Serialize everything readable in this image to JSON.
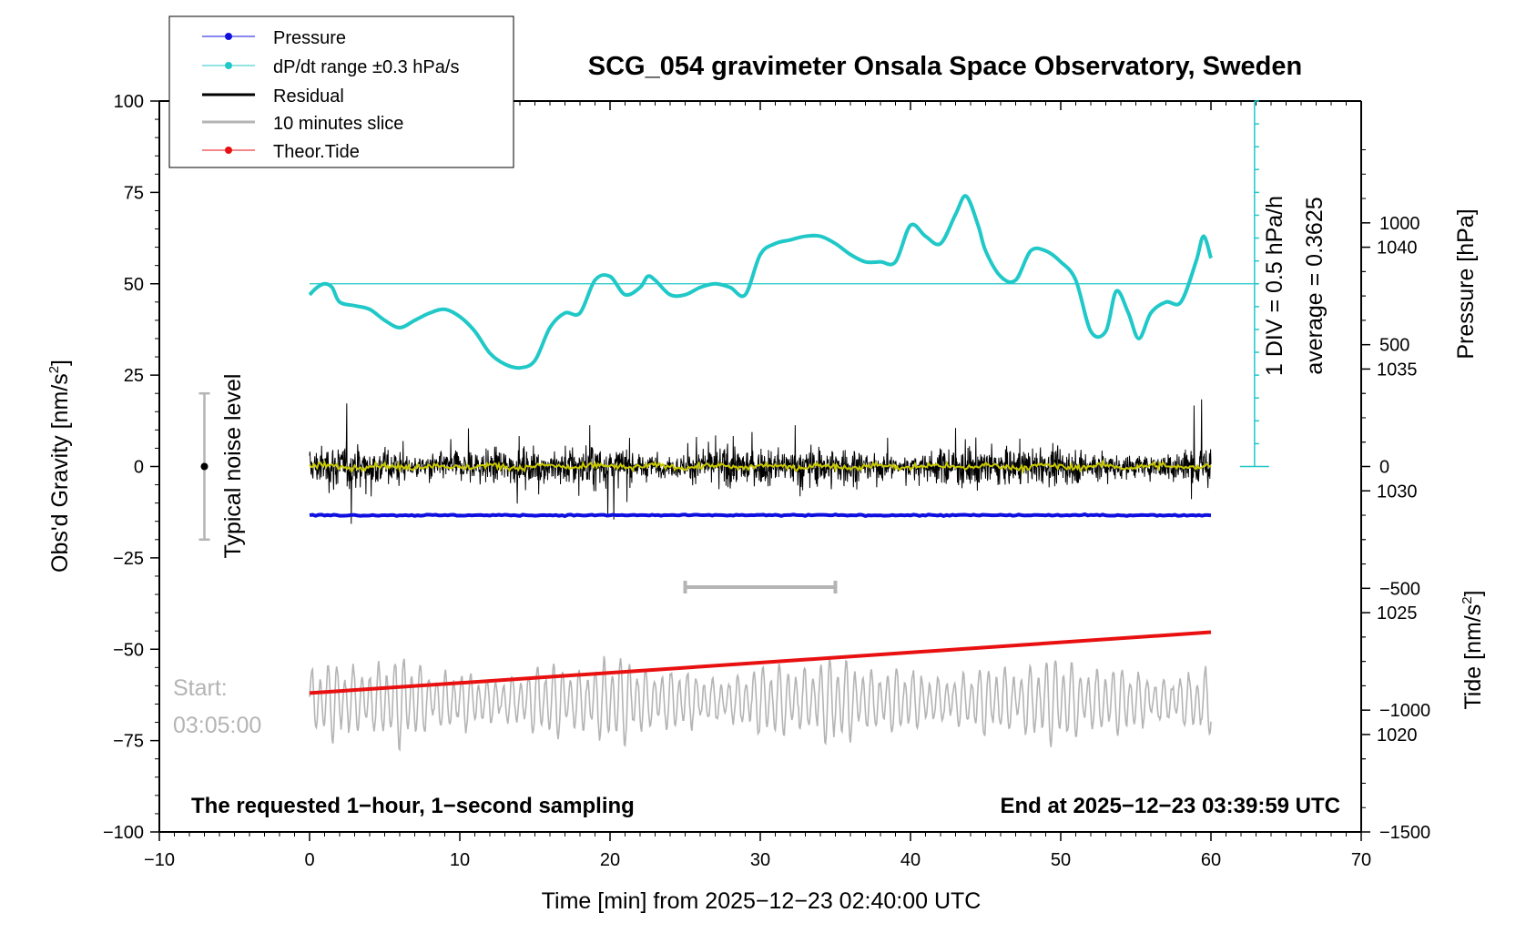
{
  "chart_data": {
    "type": "line",
    "title": "SCG_054 gravimeter Onsala Space Observatory, Sweden",
    "xlabel": "Time [min] from 2025−12−23 02:40:00 UTC",
    "ylabel": "Obs'd Gravity [nm/s",
    "ylabel_sup": "2",
    "ylabel_end": "]",
    "y2label": "Pressure [hPa]",
    "y3label": "Tide [nm/s",
    "y3label_sup": "2",
    "y3label_end": "]",
    "xlim": [
      -10,
      70
    ],
    "ylim": [
      -100,
      100
    ],
    "x_ticks": [
      {
        "v": -10,
        "label": "−10"
      },
      {
        "v": 0,
        "label": "0"
      },
      {
        "v": 10,
        "label": "10"
      },
      {
        "v": 20,
        "label": "20"
      },
      {
        "v": 30,
        "label": "30"
      },
      {
        "v": 40,
        "label": "40"
      },
      {
        "v": 50,
        "label": "50"
      },
      {
        "v": 60,
        "label": "60"
      },
      {
        "v": 70,
        "label": "70"
      }
    ],
    "y_ticks": [
      {
        "v": 100,
        "label": "100"
      },
      {
        "v": 75,
        "label": "75"
      },
      {
        "v": 50,
        "label": "50"
      },
      {
        "v": 25,
        "label": "25"
      },
      {
        "v": 0,
        "label": "0"
      },
      {
        "v": -25,
        "label": "−25"
      },
      {
        "v": -50,
        "label": "−50"
      },
      {
        "v": -75,
        "label": "−75"
      },
      {
        "v": -100,
        "label": "−100"
      }
    ],
    "pressure_axis": {
      "ylim": [
        1016,
        1046
      ],
      "ticks": [
        {
          "v": 1040,
          "label": "1040"
        },
        {
          "v": 1035,
          "label": "1035"
        },
        {
          "v": 1030,
          "label": "1030"
        },
        {
          "v": 1025,
          "label": "1025"
        },
        {
          "v": 1020,
          "label": "1020"
        }
      ]
    },
    "tide_axis": {
      "ylim": [
        -1500,
        1500
      ],
      "ticks": [
        {
          "v": 1000,
          "label": "1000"
        },
        {
          "v": 500,
          "label": "500"
        },
        {
          "v": 0,
          "label": "0"
        },
        {
          "v": -500,
          "label": "−500"
        },
        {
          "v": -1000,
          "label": "−1000"
        },
        {
          "v": -1500,
          "label": "−1500"
        }
      ]
    },
    "legend": {
      "position": "top-left",
      "entries": [
        {
          "label": "Pressure",
          "color": "#1010e0",
          "marker": true
        },
        {
          "label": "dP/dt range ±0.3 hPa/s",
          "color": "#20c8c8",
          "marker": true
        },
        {
          "label": "Residual",
          "color": "#000000",
          "marker": false
        },
        {
          "label": "10 minutes slice",
          "color": "#b4b4b4",
          "marker": false
        },
        {
          "label": "Theor.Tide",
          "color": "#e81010",
          "marker": true
        }
      ]
    },
    "series": [
      {
        "name": "Pressure",
        "color": "#1010e0",
        "axis": "pressure",
        "x": [
          0,
          60
        ],
        "values": [
          1029.0,
          1029.0
        ]
      },
      {
        "name": "dP/dt",
        "color": "#20c8c8",
        "axis": "gravity",
        "x": [
          0,
          0.5,
          1,
          1.5,
          2,
          3,
          4,
          5,
          6,
          7,
          8,
          9,
          10,
          11,
          12,
          13,
          14,
          15,
          16,
          17,
          18,
          19,
          20,
          21,
          22,
          22.5,
          23,
          24,
          25,
          26,
          27,
          28,
          29,
          30,
          31,
          32,
          33,
          34,
          35,
          36,
          37,
          38,
          39,
          40,
          41,
          42,
          43,
          43.7,
          44.5,
          45,
          46,
          47,
          48,
          49,
          50,
          51,
          52,
          53,
          53.7,
          54.5,
          55.2,
          56,
          57,
          58,
          59,
          59.5,
          60
        ],
        "values": [
          47,
          49,
          50,
          49,
          45,
          44,
          43,
          40,
          38,
          40,
          42,
          43,
          41,
          37,
          31,
          28,
          27,
          29,
          38,
          42,
          42,
          51,
          52,
          47,
          49,
          52,
          51,
          47,
          47,
          49,
          50,
          49,
          47,
          58,
          61,
          62,
          63,
          63,
          61,
          58,
          56,
          56,
          56,
          66,
          63,
          61,
          69,
          74,
          66,
          59,
          52,
          51,
          59,
          59,
          56,
          51,
          37,
          37,
          48,
          42,
          35,
          42,
          45,
          45,
          56,
          63,
          57
        ]
      },
      {
        "name": "Residual",
        "color": "#000000",
        "axis": "gravity",
        "x_range": [
          0,
          60
        ],
        "amplitude": [
          -20,
          21
        ]
      },
      {
        "name": "Smoothed residual",
        "color": "#c8c800",
        "axis": "gravity",
        "x_range": [
          0,
          60
        ],
        "value": 0
      },
      {
        "name": "10 minutes slice",
        "color": "#b4b4b4",
        "axis": "gravity",
        "x_range": [
          0,
          60
        ],
        "center": -64,
        "amplitude": [
          -79,
          -46
        ]
      },
      {
        "name": "Theor.Tide",
        "color": "#e81010",
        "axis": "tide",
        "x": [
          0,
          60
        ],
        "values": [
          -930,
          -680
        ]
      }
    ],
    "dpdt_scale": {
      "line1": "1 DIV = 0.5 hPa/h",
      "line2": "average = 0.3625",
      "x": 62.9,
      "y_range": [
        0,
        100
      ],
      "div_count": 16,
      "baseline": 50
    },
    "noise_bar": {
      "label": "Typical noise level",
      "x": -7,
      "center": 0,
      "range": [
        -20,
        20
      ]
    },
    "slice_bar": {
      "x_range": [
        25,
        35
      ],
      "y": -33
    },
    "annotations": {
      "start_label": "Start:",
      "start_time": "03:05:00",
      "footer_left": "The requested 1−hour, 1−second sampling",
      "footer_right": "End at 2025−12−23 03:39:59 UTC"
    }
  }
}
